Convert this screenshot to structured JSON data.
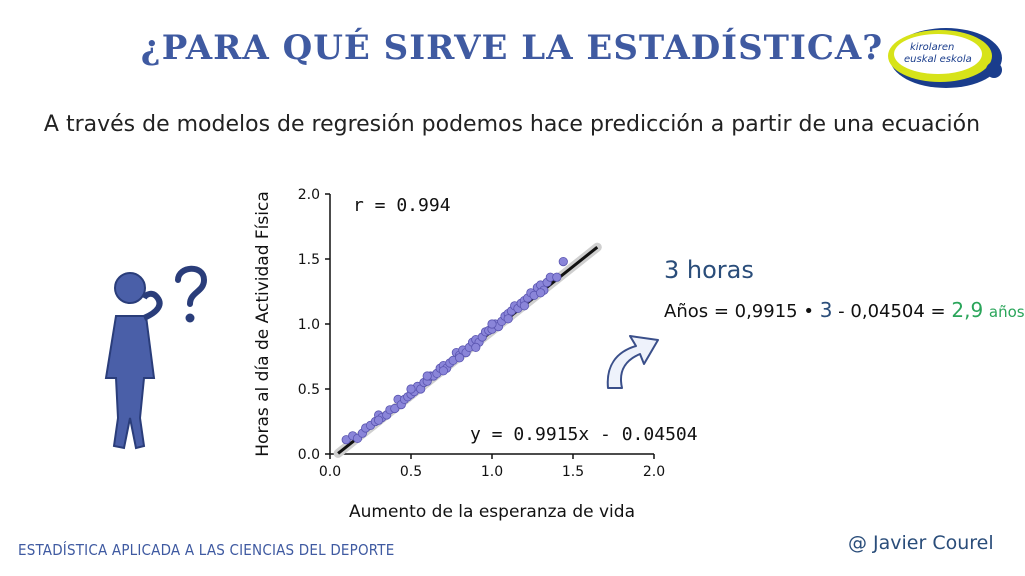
{
  "header": {
    "title": "¿PARA QUÉ SIRVE LA ESTADÍSTICA?",
    "subtitle": "A través de modelos de regresión podemos hace predicción a partir de una ecuación"
  },
  "logo": {
    "text_line1": "kirolaren",
    "text_line2": "euskal eskola",
    "colors": [
      "#d7e319",
      "#1a3d8c"
    ]
  },
  "chart_data": {
    "type": "scatter",
    "xlabel": "Aumento de la esperanza de vida",
    "ylabel": "Horas al día de Actividad  Física",
    "xlim": [
      0.0,
      2.0
    ],
    "ylim": [
      0.0,
      2.0
    ],
    "xticks": [
      "0.0",
      "0.5",
      "1.0",
      "1.5",
      "2.0"
    ],
    "yticks": [
      "0.0",
      "0.5",
      "1.0",
      "1.5",
      "2.0"
    ],
    "grid": false,
    "point_color": "#8a85d9",
    "line_color": "#111111",
    "r_label": "r = 0.994",
    "equation_label": "y = 0.9915x - 0.04504",
    "regression": {
      "slope": 0.9915,
      "intercept": -0.04504,
      "x_range": [
        0.05,
        1.65
      ]
    },
    "points": [
      [
        0.1,
        0.11
      ],
      [
        0.14,
        0.14
      ],
      [
        0.17,
        0.12
      ],
      [
        0.2,
        0.16
      ],
      [
        0.22,
        0.2
      ],
      [
        0.25,
        0.22
      ],
      [
        0.28,
        0.25
      ],
      [
        0.3,
        0.3
      ],
      [
        0.32,
        0.28
      ],
      [
        0.35,
        0.3
      ],
      [
        0.37,
        0.34
      ],
      [
        0.4,
        0.35
      ],
      [
        0.42,
        0.42
      ],
      [
        0.44,
        0.38
      ],
      [
        0.46,
        0.42
      ],
      [
        0.48,
        0.44
      ],
      [
        0.5,
        0.46
      ],
      [
        0.52,
        0.48
      ],
      [
        0.54,
        0.52
      ],
      [
        0.56,
        0.5
      ],
      [
        0.58,
        0.55
      ],
      [
        0.6,
        0.56
      ],
      [
        0.62,
        0.6
      ],
      [
        0.64,
        0.6
      ],
      [
        0.66,
        0.62
      ],
      [
        0.68,
        0.66
      ],
      [
        0.7,
        0.68
      ],
      [
        0.72,
        0.66
      ],
      [
        0.74,
        0.7
      ],
      [
        0.76,
        0.72
      ],
      [
        0.78,
        0.78
      ],
      [
        0.8,
        0.76
      ],
      [
        0.82,
        0.8
      ],
      [
        0.84,
        0.78
      ],
      [
        0.86,
        0.82
      ],
      [
        0.88,
        0.86
      ],
      [
        0.9,
        0.88
      ],
      [
        0.92,
        0.86
      ],
      [
        0.94,
        0.9
      ],
      [
        0.96,
        0.94
      ],
      [
        0.98,
        0.95
      ],
      [
        1.0,
        0.96
      ],
      [
        1.02,
        1.0
      ],
      [
        1.04,
        0.98
      ],
      [
        1.06,
        1.02
      ],
      [
        1.08,
        1.06
      ],
      [
        1.1,
        1.08
      ],
      [
        1.12,
        1.1
      ],
      [
        1.14,
        1.14
      ],
      [
        1.16,
        1.12
      ],
      [
        1.18,
        1.16
      ],
      [
        1.2,
        1.18
      ],
      [
        1.22,
        1.2
      ],
      [
        1.24,
        1.24
      ],
      [
        1.26,
        1.22
      ],
      [
        1.28,
        1.28
      ],
      [
        1.3,
        1.3
      ],
      [
        1.32,
        1.26
      ],
      [
        1.34,
        1.32
      ],
      [
        1.36,
        1.36
      ],
      [
        1.4,
        1.36
      ],
      [
        1.44,
        1.48
      ],
      [
        0.8,
        0.74
      ],
      [
        0.6,
        0.6
      ],
      [
        0.5,
        0.5
      ],
      [
        0.9,
        0.82
      ],
      [
        1.1,
        1.04
      ],
      [
        1.2,
        1.14
      ],
      [
        0.3,
        0.26
      ],
      [
        0.7,
        0.64
      ],
      [
        1.0,
        1.0
      ],
      [
        1.3,
        1.24
      ]
    ]
  },
  "prediction": {
    "hours_label": "3 horas",
    "prefix": "Años = 0,9915 •",
    "hours_value": "3",
    "middle": "- 0,04504 =",
    "result_value": "2,9",
    "result_unit": "años"
  },
  "footer": {
    "left_text": "ESTADÍSTICA APLICADA A LAS CIENCIAS DEL DEPORTE",
    "author": "@ Javier Courel"
  },
  "icons": {
    "person": "thinking-person-icon",
    "question": "question-mark-icon",
    "arrow": "curved-arrow-icon"
  }
}
